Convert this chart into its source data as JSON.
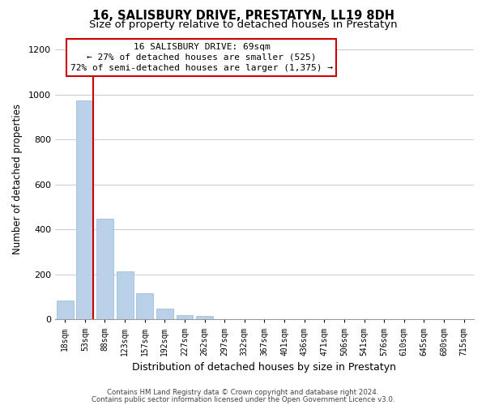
{
  "title": "16, SALISBURY DRIVE, PRESTATYN, LL19 8DH",
  "subtitle": "Size of property relative to detached houses in Prestatyn",
  "xlabel": "Distribution of detached houses by size in Prestatyn",
  "ylabel": "Number of detached properties",
  "bar_labels": [
    "18sqm",
    "53sqm",
    "88sqm",
    "123sqm",
    "157sqm",
    "192sqm",
    "227sqm",
    "262sqm",
    "297sqm",
    "332sqm",
    "367sqm",
    "401sqm",
    "436sqm",
    "471sqm",
    "506sqm",
    "541sqm",
    "576sqm",
    "610sqm",
    "645sqm",
    "680sqm",
    "715sqm"
  ],
  "bar_values": [
    85,
    975,
    450,
    215,
    115,
    50,
    20,
    15,
    0,
    0,
    0,
    0,
    0,
    0,
    0,
    0,
    0,
    0,
    0,
    0,
    0
  ],
  "bar_color": "#b8d0e8",
  "bar_edge_color": "#9ab8d8",
  "marker_line_color": "#cc0000",
  "annotation_title": "16 SALISBURY DRIVE: 69sqm",
  "annotation_line1": "← 27% of detached houses are smaller (525)",
  "annotation_line2": "72% of semi-detached houses are larger (1,375) →",
  "annotation_box_color": "#ffffff",
  "annotation_box_edge": "#cc0000",
  "ylim": [
    0,
    1250
  ],
  "yticks": [
    0,
    200,
    400,
    600,
    800,
    1000,
    1200
  ],
  "footer1": "Contains HM Land Registry data © Crown copyright and database right 2024.",
  "footer2": "Contains public sector information licensed under the Open Government Licence v3.0.",
  "bg_color": "#ffffff",
  "grid_color": "#cccccc"
}
